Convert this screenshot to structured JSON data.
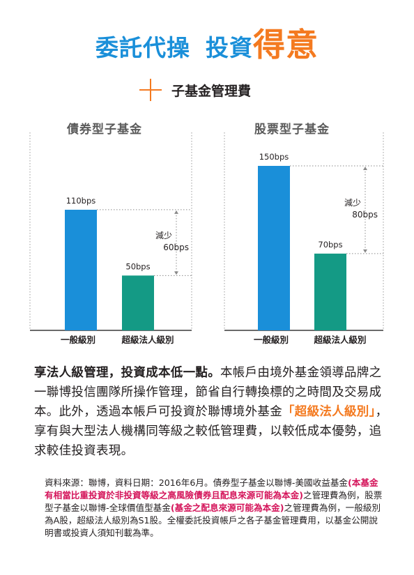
{
  "title": {
    "part1": "委託代操",
    "part2": "投資",
    "part3": "得意"
  },
  "subtitle": {
    "icon": "plus-icon",
    "text": "子基金管理費"
  },
  "colors": {
    "blue": "#1a8fd9",
    "teal": "#149a85",
    "orange": "#f47a20",
    "red": "#d4145a"
  },
  "chart_data": [
    {
      "type": "bar",
      "title": "債券型子基金",
      "categories": [
        "一般級別",
        "超級法人級別"
      ],
      "values": [
        110,
        50
      ],
      "value_labels": [
        "110bps",
        "50bps"
      ],
      "bar_colors": [
        "#1a8fd9",
        "#149a85"
      ],
      "annotation": {
        "line1": "減少",
        "line2": "60bps"
      },
      "ylim": [
        0,
        160
      ]
    },
    {
      "type": "bar",
      "title": "股票型子基金",
      "categories": [
        "一般級別",
        "超級法人級別"
      ],
      "values": [
        150,
        70
      ],
      "value_labels": [
        "150bps",
        "70bps"
      ],
      "bar_colors": [
        "#1a8fd9",
        "#149a85"
      ],
      "annotation": {
        "line1": "減少",
        "line2": "80bps"
      },
      "ylim": [
        0,
        160
      ]
    }
  ],
  "paragraph": {
    "lead": "享法人級管理，投資成本低一點。",
    "text1": "本帳戶由境外基金領導品牌之一聯博投信團隊所操作管理，節省自行轉換標的之時間及交易成本。此外，透過本帳戶可投資於聯博境外基金",
    "highlight": "「超級法人級別」",
    "text2": "，享有與大型法人機構同等級之較低管理費，以較低成本優勢，追求較佳投資表現。"
  },
  "note": {
    "s1": "資料來源：聯博，資料日期：2016年6月。債券型子基金以聯博-美國收益基金",
    "r1": "(本基金有相當比重投資於非投資等級之高風險債券且配息來源可能為本金)",
    "s2": "之管理費為例，股票型子基金以聯博-全球價值型基金",
    "r2": "(基金之配息來源可能為本金)",
    "s3": "之管理費為例，一般級別為A股，超級法人級別為S1股。全權委託投資帳戶之各子基金管理費用，以基金公開說明書或投資人須知刊載為準。"
  }
}
